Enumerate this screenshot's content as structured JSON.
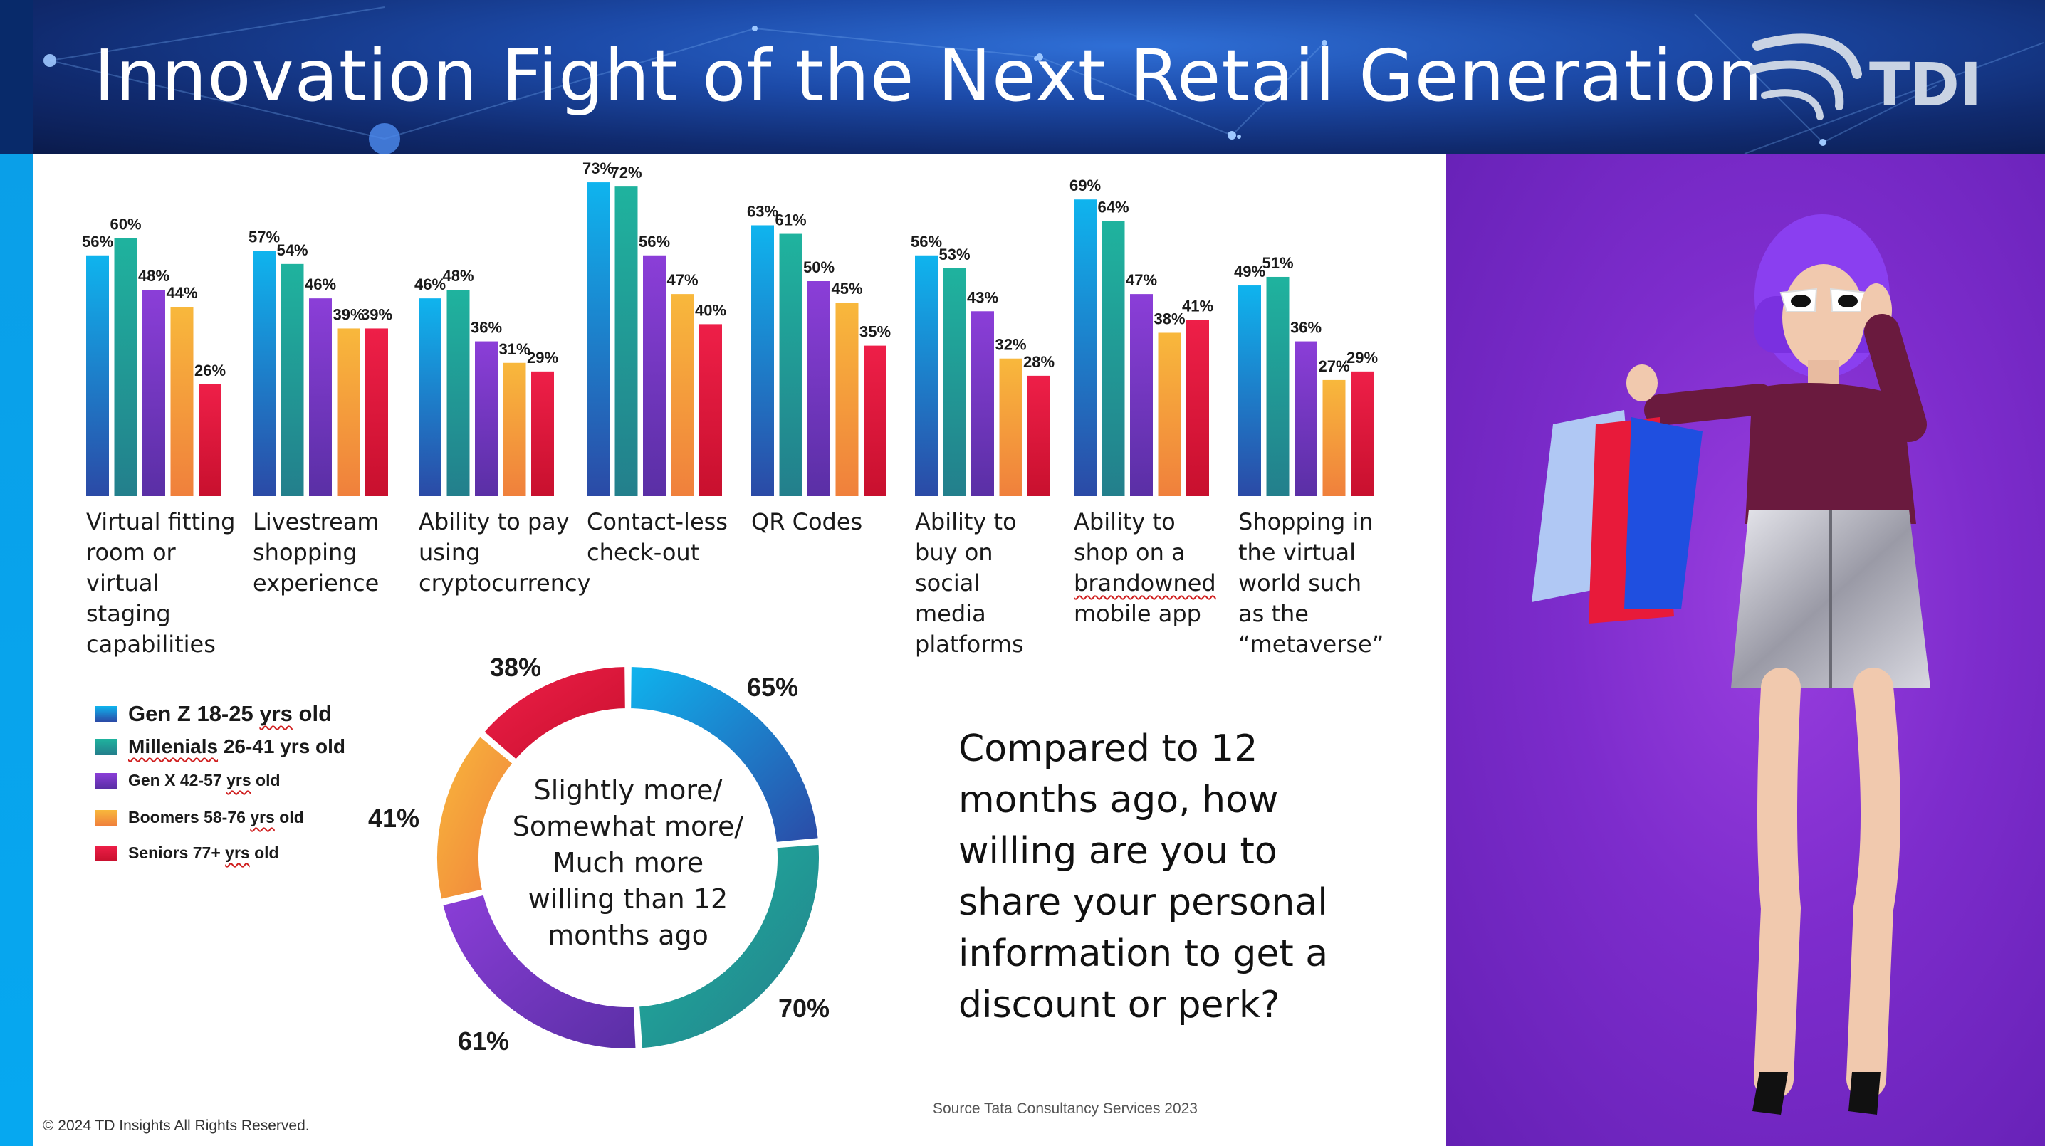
{
  "header": {
    "title": "Innovation Fight of the Next Retail Generation",
    "logo_text": "TDI"
  },
  "chart_data": [
    {
      "type": "bar",
      "categories": [
        "Virtual fitting room or virtual staging capabilities",
        "Livestream shopping experience",
        "Ability to pay using cryptocurrency",
        "Contact-less check-out",
        "QR Codes",
        "Ability to buy on social media platforms",
        "Ability to shop on a brandowned mobile app",
        "Shopping in the virtual world such as the “metaverse”"
      ],
      "category_lines": [
        [
          "Virtual fitting",
          "room or",
          "virtual",
          "staging",
          "capabilities"
        ],
        [
          "Livestream",
          "shopping",
          "experience"
        ],
        [
          "Ability to pay",
          "using",
          "cryptocurrency"
        ],
        [
          "Contact-less",
          "check-out"
        ],
        [
          "QR Codes"
        ],
        [
          "Ability to",
          "buy on",
          "social",
          "media",
          "platforms"
        ],
        [
          "Ability to",
          "shop on a",
          "brandowned",
          "mobile app"
        ],
        [
          "Shopping in",
          "the virtual",
          "world such",
          "as the",
          "“metaverse”"
        ]
      ],
      "series": [
        {
          "name": "Gen Z 18-25 yrs old",
          "values": [
            56,
            57,
            46,
            73,
            63,
            56,
            69,
            49
          ]
        },
        {
          "name": "Millenials 26-41 yrs old",
          "values": [
            60,
            54,
            48,
            72,
            61,
            53,
            64,
            51
          ]
        },
        {
          "name": "Gen X 42-57 yrs old",
          "values": [
            48,
            46,
            36,
            56,
            50,
            43,
            47,
            36
          ]
        },
        {
          "name": "Boomers 58-76 yrs old",
          "values": [
            44,
            39,
            31,
            47,
            45,
            32,
            38,
            27
          ]
        },
        {
          "name": "Seniors 77+ yrs old",
          "values": [
            26,
            39,
            29,
            40,
            35,
            28,
            41,
            29
          ]
        }
      ],
      "value_suffix": "%",
      "ylim": [
        0,
        80
      ],
      "grid": false,
      "legend": "bottom-left"
    },
    {
      "type": "pie",
      "variant": "donut",
      "slices": [
        {
          "series": "Gen Z 18-25 yrs old",
          "value": 65,
          "label": "65%"
        },
        {
          "series": "Millenials 26-41 yrs old",
          "value": 70,
          "label": "70%"
        },
        {
          "series": "Gen X 42-57 yrs old",
          "value": 61,
          "label": "61%"
        },
        {
          "series": "Boomers 58-76 yrs old",
          "value": 41,
          "label": "41%"
        },
        {
          "series": "Seniors 77+ yrs old",
          "value": 38,
          "label": "38%"
        }
      ],
      "center_lines": [
        "Slightly more/",
        "Somewhat more/",
        "Much more",
        "willing than 12",
        "months ago"
      ]
    }
  ],
  "colors": {
    "genz_top": "#0fb4ee",
    "genz_bottom": "#2b4aa6",
    "millenials_top": "#1fb39e",
    "millenials_bottom": "#237f8c",
    "genx_top": "#8b3ed8",
    "genx_bottom": "#5a2fa5",
    "boomers_top": "#f8b83c",
    "boomers_bottom": "#f0803c",
    "seniors_top": "#ee1f48",
    "seniors_bottom": "#c8102e"
  },
  "legend": {
    "items": [
      {
        "prefix": "Gen Z 18-25 ",
        "wavy": "yrs",
        "suffix": " old"
      },
      {
        "prefix": "",
        "wavy": "Millenials",
        "suffix": " 26-41 yrs old"
      },
      {
        "prefix": "Gen X 42-57 ",
        "wavy": "yrs",
        "suffix": " old"
      },
      {
        "prefix": "Boomers 58-76 ",
        "wavy": "yrs",
        "suffix": " old"
      },
      {
        "prefix": "Seniors 77+ ",
        "wavy": "yrs",
        "suffix": " old"
      }
    ]
  },
  "question": "Compared to 12 months ago, how willing are you to share your personal information to get a discount or perk?",
  "source": "Source Tata Consultancy Services 2023",
  "copyright": "© 2024 TD Insights All Rights Reserved."
}
